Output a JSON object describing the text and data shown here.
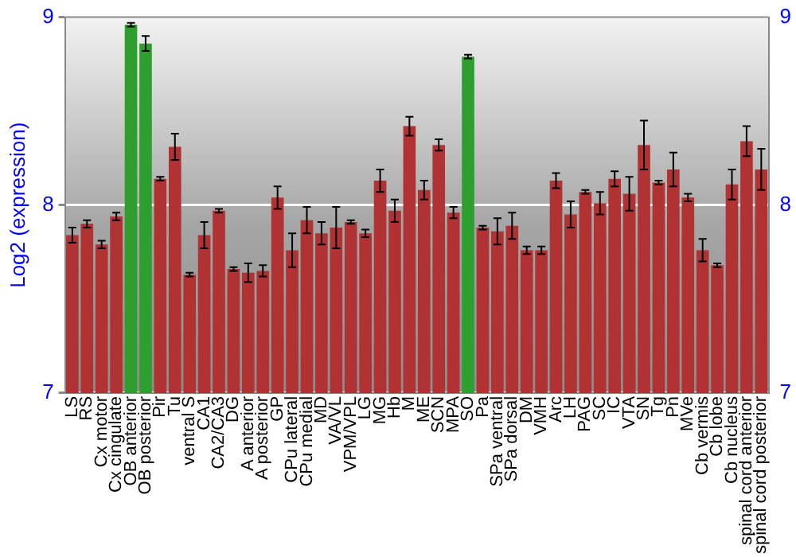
{
  "chart_data": {
    "type": "bar",
    "ylabel": "Log2 (expression)",
    "categories": [
      "LS",
      "RS",
      "Cx motor",
      "Cx cingulate",
      "OB anterior",
      "OB posterior",
      "Pir",
      "Tu",
      "ventral S",
      "CA1",
      "CA2/CA3",
      "DG",
      "A anterior",
      "A posterior",
      "GP",
      "CPu lateral",
      "CPu medial",
      "MD",
      "VA/VL",
      "VPM/VPL",
      "LG",
      "MG",
      "Hb",
      "M",
      "ME",
      "SCN",
      "MPA",
      "SO",
      "Pa",
      "SPa ventral",
      "SPa dorsal",
      "DM",
      "VMH",
      "Arc",
      "LH",
      "PAG",
      "SC",
      "IC",
      "VTA",
      "SN",
      "Tg",
      "Pn",
      "MVe",
      "Cb vermis",
      "Cb lobe",
      "Cb nucleus",
      "spinal cord anterior",
      "spinal cord posterior"
    ],
    "values": [
      7.84,
      7.9,
      7.79,
      7.94,
      8.96,
      8.86,
      8.14,
      8.31,
      7.63,
      7.84,
      7.97,
      7.66,
      7.64,
      7.65,
      8.04,
      7.76,
      7.92,
      7.85,
      7.88,
      7.91,
      7.85,
      8.13,
      7.97,
      8.42,
      8.08,
      8.32,
      7.96,
      8.79,
      7.88,
      7.86,
      7.89,
      7.76,
      7.76,
      8.13,
      7.95,
      8.07,
      8.01,
      8.14,
      8.06,
      8.32,
      8.12,
      8.19,
      8.04,
      7.76,
      7.68,
      8.11,
      8.34,
      8.19
    ],
    "errors": [
      0.04,
      0.02,
      0.02,
      0.02,
      0.01,
      0.04,
      0.01,
      0.07,
      0.01,
      0.07,
      0.01,
      0.01,
      0.05,
      0.03,
      0.06,
      0.09,
      0.07,
      0.06,
      0.11,
      0.01,
      0.02,
      0.06,
      0.06,
      0.05,
      0.05,
      0.03,
      0.03,
      0.01,
      0.01,
      0.07,
      0.07,
      0.02,
      0.02,
      0.04,
      0.07,
      0.01,
      0.06,
      0.04,
      0.09,
      0.13,
      0.01,
      0.09,
      0.02,
      0.06,
      0.01,
      0.08,
      0.08,
      0.11
    ],
    "colors": [
      "#b03232",
      "#b03232",
      "#b03232",
      "#b03232",
      "#2e9e2e",
      "#2e9e2e",
      "#b03232",
      "#b03232",
      "#b03232",
      "#b03232",
      "#b03232",
      "#b03232",
      "#b03232",
      "#b03232",
      "#b03232",
      "#b03232",
      "#b03232",
      "#b03232",
      "#b03232",
      "#b03232",
      "#b03232",
      "#b03232",
      "#b03232",
      "#b03232",
      "#b03232",
      "#b03232",
      "#b03232",
      "#2e9e2e",
      "#b03232",
      "#b03232",
      "#b03232",
      "#b03232",
      "#b03232",
      "#b03232",
      "#b03232",
      "#b03232",
      "#b03232",
      "#b03232",
      "#b03232",
      "#b03232",
      "#b03232",
      "#b03232",
      "#b03232",
      "#b03232",
      "#b03232",
      "#b03232",
      "#b03232",
      "#b03232"
    ],
    "ylim": [
      7,
      9
    ],
    "yticks": [
      7,
      8,
      9
    ],
    "y2lim": [
      7,
      9
    ],
    "y2ticks": [
      7,
      8,
      9
    ],
    "grid": "y",
    "legend": false
  }
}
